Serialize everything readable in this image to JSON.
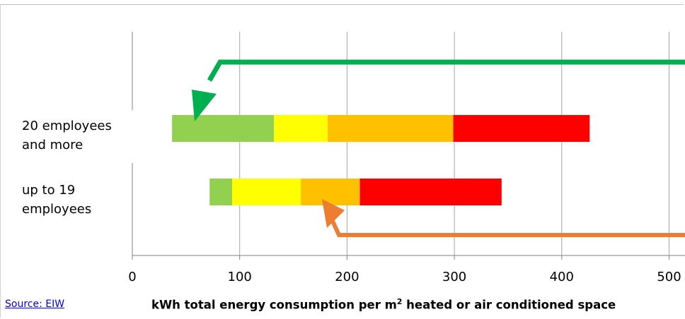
{
  "chart_data": {
    "type": "bar",
    "orientation": "horizontal-stacked-range",
    "categories": [
      "up to 19 employees",
      "20 employees and more"
    ],
    "category_lines": [
      [
        "up to 19",
        "employees"
      ],
      [
        "20 employees",
        "and more"
      ]
    ],
    "segments": [
      {
        "category": "up to 19 employees",
        "ranges": [
          {
            "from": 72,
            "to": 93,
            "color": "#92d050"
          },
          {
            "from": 93,
            "to": 157,
            "color": "#ffff00"
          },
          {
            "from": 157,
            "to": 212,
            "color": "#ffc000"
          },
          {
            "from": 212,
            "to": 344,
            "color": "#ff0000"
          }
        ]
      },
      {
        "category": "20 employees and more",
        "ranges": [
          {
            "from": 37,
            "to": 132,
            "color": "#92d050"
          },
          {
            "from": 132,
            "to": 182,
            "color": "#ffff00"
          },
          {
            "from": 182,
            "to": 299,
            "color": "#ffc000"
          },
          {
            "from": 299,
            "to": 426,
            "color": "#ff0000"
          }
        ]
      }
    ],
    "xticks": [
      "0",
      "100",
      "200",
      "300",
      "400",
      "500"
    ],
    "xlim": [
      0,
      500
    ],
    "xlabel_main": "kWh total energy consumption per m",
    "xlabel_sup": "2",
    "xlabel_rest": " heated or air conditioned space",
    "grid": true,
    "arrows": [
      {
        "color": "#00b050",
        "target_category": "20 employees and more"
      },
      {
        "color": "#ed7d31",
        "target_category": "up to 19 employees"
      }
    ]
  },
  "source": {
    "label": "Source: EIW"
  }
}
